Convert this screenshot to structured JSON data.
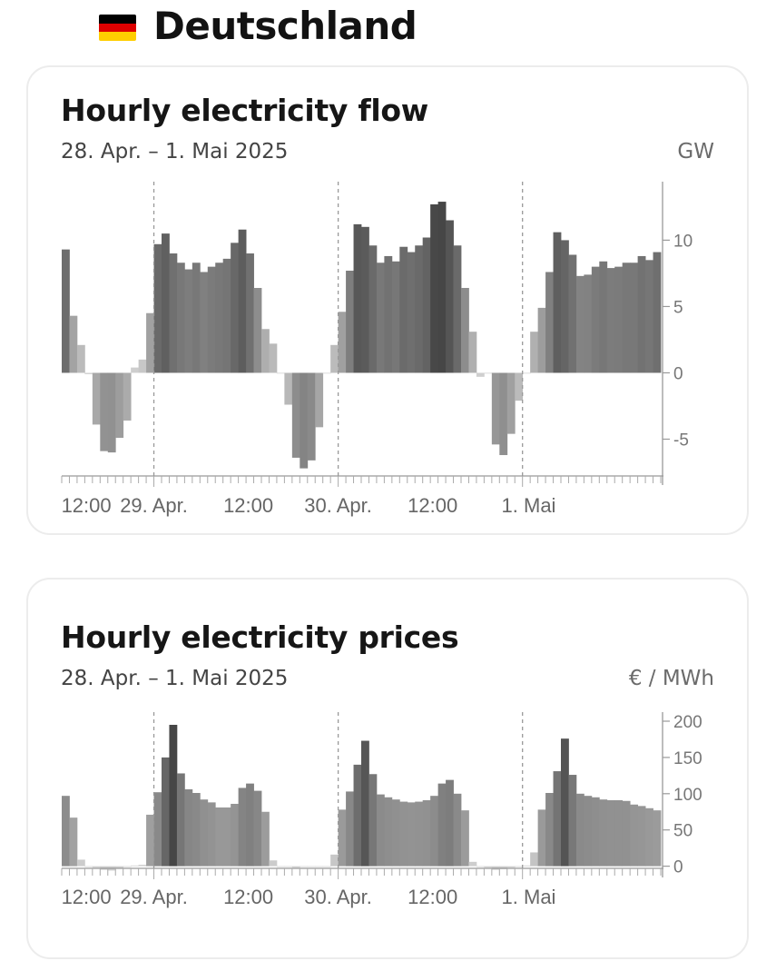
{
  "header": {
    "country": "Deutschland",
    "flag_colors": [
      "#000000",
      "#dd0000",
      "#ffce00"
    ]
  },
  "flow_card": {
    "title": "Hourly electricity flow",
    "date_range": "28. Apr. – 1. Mai 2025",
    "unit": "GW"
  },
  "price_card": {
    "title": "Hourly electricity prices",
    "date_range": "28. Apr. – 1. Mai 2025",
    "unit": "€ / MWh"
  },
  "chart_data": [
    {
      "type": "bar",
      "title": "Hourly electricity flow",
      "ylabel": "GW",
      "ylim": [
        -7.5,
        14
      ],
      "yticks": [
        10,
        5,
        0,
        -5
      ],
      "x_labels": [
        "12:00",
        "29. Apr.",
        "12:00",
        "30. Apr.",
        "12:00",
        "1. Mai"
      ],
      "values": [
        9.3,
        4.3,
        2.1,
        -0.1,
        -3.9,
        -5.9,
        -6.0,
        -4.9,
        -3.6,
        0.4,
        1.0,
        4.5,
        9.7,
        10.5,
        9.0,
        8.3,
        7.8,
        8.3,
        7.6,
        8.0,
        8.3,
        8.6,
        9.8,
        10.8,
        9.0,
        6.4,
        3.3,
        2.2,
        0.0,
        -2.4,
        -6.4,
        -7.2,
        -6.6,
        -4.1,
        0.0,
        2.1,
        4.6,
        7.7,
        11.2,
        11.0,
        9.6,
        8.3,
        8.8,
        8.4,
        9.5,
        9.1,
        9.6,
        10.2,
        12.7,
        12.9,
        11.5,
        9.6,
        6.4,
        3.1,
        -0.3,
        0.0,
        -5.4,
        -6.2,
        -4.6,
        -2.1,
        0.0,
        3.1,
        4.9,
        7.6,
        10.6,
        10.0,
        8.9,
        7.3,
        7.4,
        8.0,
        8.4,
        7.9,
        8.0,
        8.3,
        8.3,
        8.8,
        8.5,
        9.1
      ]
    },
    {
      "type": "bar",
      "title": "Hourly electricity prices",
      "ylabel": "€ / MWh",
      "ylim": [
        -8,
        205
      ],
      "yticks": [
        200,
        150,
        100,
        50,
        0
      ],
      "x_labels": [
        "12:00",
        "29. Apr.",
        "12:00",
        "30. Apr.",
        "12:00",
        "1. Mai"
      ],
      "values": [
        97,
        67,
        9,
        0,
        -2,
        -5,
        -6,
        -3,
        -1,
        1,
        2,
        71,
        102,
        150,
        195,
        128,
        106,
        101,
        92,
        88,
        81,
        81,
        86,
        108,
        114,
        104,
        75,
        8,
        0,
        -1,
        -2,
        -1,
        0,
        0,
        0,
        16,
        78,
        103,
        140,
        173,
        127,
        99,
        95,
        92,
        89,
        88,
        89,
        91,
        97,
        114,
        119,
        100,
        77,
        6,
        0,
        -2,
        -5,
        -4,
        -2,
        0,
        1,
        19,
        78,
        101,
        131,
        176,
        126,
        100,
        97,
        95,
        92,
        91,
        91,
        90,
        85,
        83,
        80,
        77
      ]
    }
  ]
}
